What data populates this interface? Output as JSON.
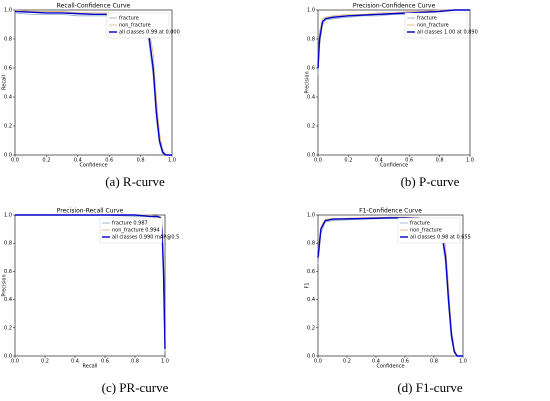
{
  "chart_data": [
    {
      "type": "line",
      "title": "Recall-Confidence Curve",
      "xlabel": "Confidence",
      "ylabel": "Recall",
      "caption": "(a) R-curve",
      "xlim": [
        0,
        1
      ],
      "ylim": [
        0,
        1
      ],
      "xticks": [
        {
          "value": 0,
          "label": "0.0"
        },
        {
          "value": 0.2,
          "label": "0.2"
        },
        {
          "value": 0.4,
          "label": "0.4"
        },
        {
          "value": 0.6,
          "label": "0.6"
        },
        {
          "value": 0.8,
          "label": "0.8"
        },
        {
          "value": 1,
          "label": "1.0"
        }
      ],
      "yticks": [
        {
          "value": 0,
          "label": "0.0"
        },
        {
          "value": 0.2,
          "label": "0.2"
        },
        {
          "value": 0.4,
          "label": "0.4"
        },
        {
          "value": 0.6,
          "label": "0.6"
        },
        {
          "value": 0.8,
          "label": "0.8"
        },
        {
          "value": 1,
          "label": "1.0"
        }
      ],
      "legend": "upper right",
      "x": [
        0,
        0.1,
        0.2,
        0.3,
        0.4,
        0.5,
        0.6,
        0.7,
        0.8,
        0.85,
        0.88,
        0.9,
        0.92,
        0.94,
        0.96,
        1.0
      ],
      "series": [
        {
          "name": "fracture",
          "color": "#8eaac9",
          "values": [
            0.98,
            0.97,
            0.97,
            0.97,
            0.96,
            0.96,
            0.96,
            0.95,
            0.92,
            0.8,
            0.55,
            0.25,
            0.08,
            0.01,
            0,
            0
          ]
        },
        {
          "name": "non_fracture",
          "color": "#e0b27a",
          "values": [
            1,
            0.99,
            0.99,
            0.99,
            0.98,
            0.98,
            0.98,
            0.97,
            0.95,
            0.9,
            0.7,
            0.4,
            0.15,
            0.04,
            0,
            0
          ]
        },
        {
          "name": "all classes 0.99 at 0.000",
          "color": "#0000c8",
          "values": [
            0.99,
            0.985,
            0.98,
            0.98,
            0.975,
            0.97,
            0.97,
            0.96,
            0.93,
            0.85,
            0.6,
            0.3,
            0.1,
            0.02,
            0,
            0
          ]
        }
      ]
    },
    {
      "type": "line",
      "title": "Precision-Confidence Curve",
      "xlabel": "Confidence",
      "ylabel": "Precision",
      "caption": "(b) P-curve",
      "xlim": [
        0,
        1
      ],
      "ylim": [
        0,
        1
      ],
      "xticks": [
        {
          "value": 0,
          "label": "0.0"
        },
        {
          "value": 0.2,
          "label": "0.2"
        },
        {
          "value": 0.4,
          "label": "0.4"
        },
        {
          "value": 0.6,
          "label": "0.6"
        },
        {
          "value": 0.8,
          "label": "0.8"
        },
        {
          "value": 1,
          "label": "1.0"
        }
      ],
      "yticks": [
        {
          "value": 0,
          "label": "0.0"
        },
        {
          "value": 0.2,
          "label": "0.2"
        },
        {
          "value": 0.4,
          "label": "0.4"
        },
        {
          "value": 0.6,
          "label": "0.6"
        },
        {
          "value": 0.8,
          "label": "0.8"
        },
        {
          "value": 1,
          "label": "1.0"
        }
      ],
      "legend": "upper right",
      "x": [
        0,
        0.01,
        0.03,
        0.05,
        0.1,
        0.2,
        0.3,
        0.4,
        0.5,
        0.6,
        0.7,
        0.8,
        0.9,
        1.0
      ],
      "series": [
        {
          "name": "fracture",
          "color": "#8eaac9",
          "values": [
            0.55,
            0.75,
            0.9,
            0.93,
            0.94,
            0.95,
            0.96,
            0.96,
            0.97,
            0.97,
            0.98,
            0.99,
            1,
            1
          ]
        },
        {
          "name": "non_fracture",
          "color": "#e0b27a",
          "values": [
            0.65,
            0.85,
            0.94,
            0.95,
            0.96,
            0.97,
            0.97,
            0.98,
            0.98,
            0.99,
            0.99,
            1,
            1,
            1
          ]
        },
        {
          "name": "all classes 1.00 at 0.890",
          "color": "#0000c8",
          "values": [
            0.6,
            0.8,
            0.92,
            0.94,
            0.95,
            0.96,
            0.965,
            0.97,
            0.975,
            0.98,
            0.985,
            0.99,
            1,
            1
          ]
        }
      ]
    },
    {
      "type": "line",
      "title": "Precision-Recall Curve",
      "xlabel": "Recall",
      "ylabel": "Precision",
      "caption": "(c) PR-curve",
      "xlim": [
        0,
        1
      ],
      "ylim": [
        0,
        1
      ],
      "xticks": [
        {
          "value": 0,
          "label": "0.0"
        },
        {
          "value": 0.2,
          "label": "0.2"
        },
        {
          "value": 0.4,
          "label": "0.4"
        },
        {
          "value": 0.6,
          "label": "0.6"
        },
        {
          "value": 0.8,
          "label": "0.8"
        },
        {
          "value": 1,
          "label": "1.0"
        }
      ],
      "yticks": [
        {
          "value": 0,
          "label": "0.0"
        },
        {
          "value": 0.2,
          "label": "0.2"
        },
        {
          "value": 0.4,
          "label": "0.4"
        },
        {
          "value": 0.6,
          "label": "0.6"
        },
        {
          "value": 0.8,
          "label": "0.8"
        },
        {
          "value": 1,
          "label": "1.0"
        }
      ],
      "legend": "upper right",
      "x": [
        0,
        0.2,
        0.4,
        0.6,
        0.8,
        0.9,
        0.95,
        0.97,
        0.98,
        0.99,
        1.0
      ],
      "series": [
        {
          "name": "fracture 0.987",
          "color": "#8eaac9",
          "values": [
            1,
            1,
            1,
            1,
            0.99,
            0.99,
            0.98,
            0.97,
            0.85,
            0.55,
            0.03
          ]
        },
        {
          "name": "non_fracture 0.994",
          "color": "#e0b27a",
          "values": [
            1,
            1,
            1,
            1,
            1,
            1,
            0.99,
            0.99,
            0.95,
            0.65,
            0.06
          ]
        },
        {
          "name": "all classes 0.990 mAP@0.5",
          "color": "#0000c8",
          "values": [
            1,
            1,
            1,
            1,
            1,
            0.99,
            0.99,
            0.98,
            0.9,
            0.6,
            0.05
          ]
        }
      ]
    },
    {
      "type": "line",
      "title": "F1-Confidence Curve",
      "xlabel": "Confidence",
      "ylabel": "F1",
      "caption": "(d) F1-curve",
      "xlim": [
        0,
        1
      ],
      "ylim": [
        0,
        1
      ],
      "xticks": [
        {
          "value": 0,
          "label": "0.0"
        },
        {
          "value": 0.2,
          "label": "0.2"
        },
        {
          "value": 0.4,
          "label": "0.4"
        },
        {
          "value": 0.6,
          "label": "0.6"
        },
        {
          "value": 0.8,
          "label": "0.8"
        },
        {
          "value": 1,
          "label": "1.0"
        }
      ],
      "yticks": [
        {
          "value": 0,
          "label": "0.0"
        },
        {
          "value": 0.2,
          "label": "0.2"
        },
        {
          "value": 0.4,
          "label": "0.4"
        },
        {
          "value": 0.6,
          "label": "0.6"
        },
        {
          "value": 0.8,
          "label": "0.8"
        },
        {
          "value": 1,
          "label": "1.0"
        }
      ],
      "legend": "upper right",
      "x": [
        0,
        0.02,
        0.05,
        0.1,
        0.3,
        0.5,
        0.6,
        0.7,
        0.8,
        0.85,
        0.88,
        0.9,
        0.92,
        0.94,
        0.96,
        1.0
      ],
      "series": [
        {
          "name": "fracture",
          "color": "#8eaac9",
          "values": [
            0.65,
            0.87,
            0.95,
            0.96,
            0.97,
            0.975,
            0.975,
            0.97,
            0.94,
            0.88,
            0.65,
            0.35,
            0.12,
            0.02,
            0,
            0
          ]
        },
        {
          "name": "non_fracture",
          "color": "#e0b27a",
          "values": [
            0.75,
            0.92,
            0.97,
            0.975,
            0.98,
            0.985,
            0.985,
            0.98,
            0.96,
            0.92,
            0.78,
            0.5,
            0.2,
            0.05,
            0,
            0
          ]
        },
        {
          "name": "all classes 0.98 at 0.655",
          "color": "#0000c8",
          "values": [
            0.7,
            0.9,
            0.96,
            0.97,
            0.975,
            0.98,
            0.98,
            0.975,
            0.95,
            0.9,
            0.7,
            0.4,
            0.15,
            0.03,
            0,
            0
          ]
        }
      ]
    }
  ]
}
